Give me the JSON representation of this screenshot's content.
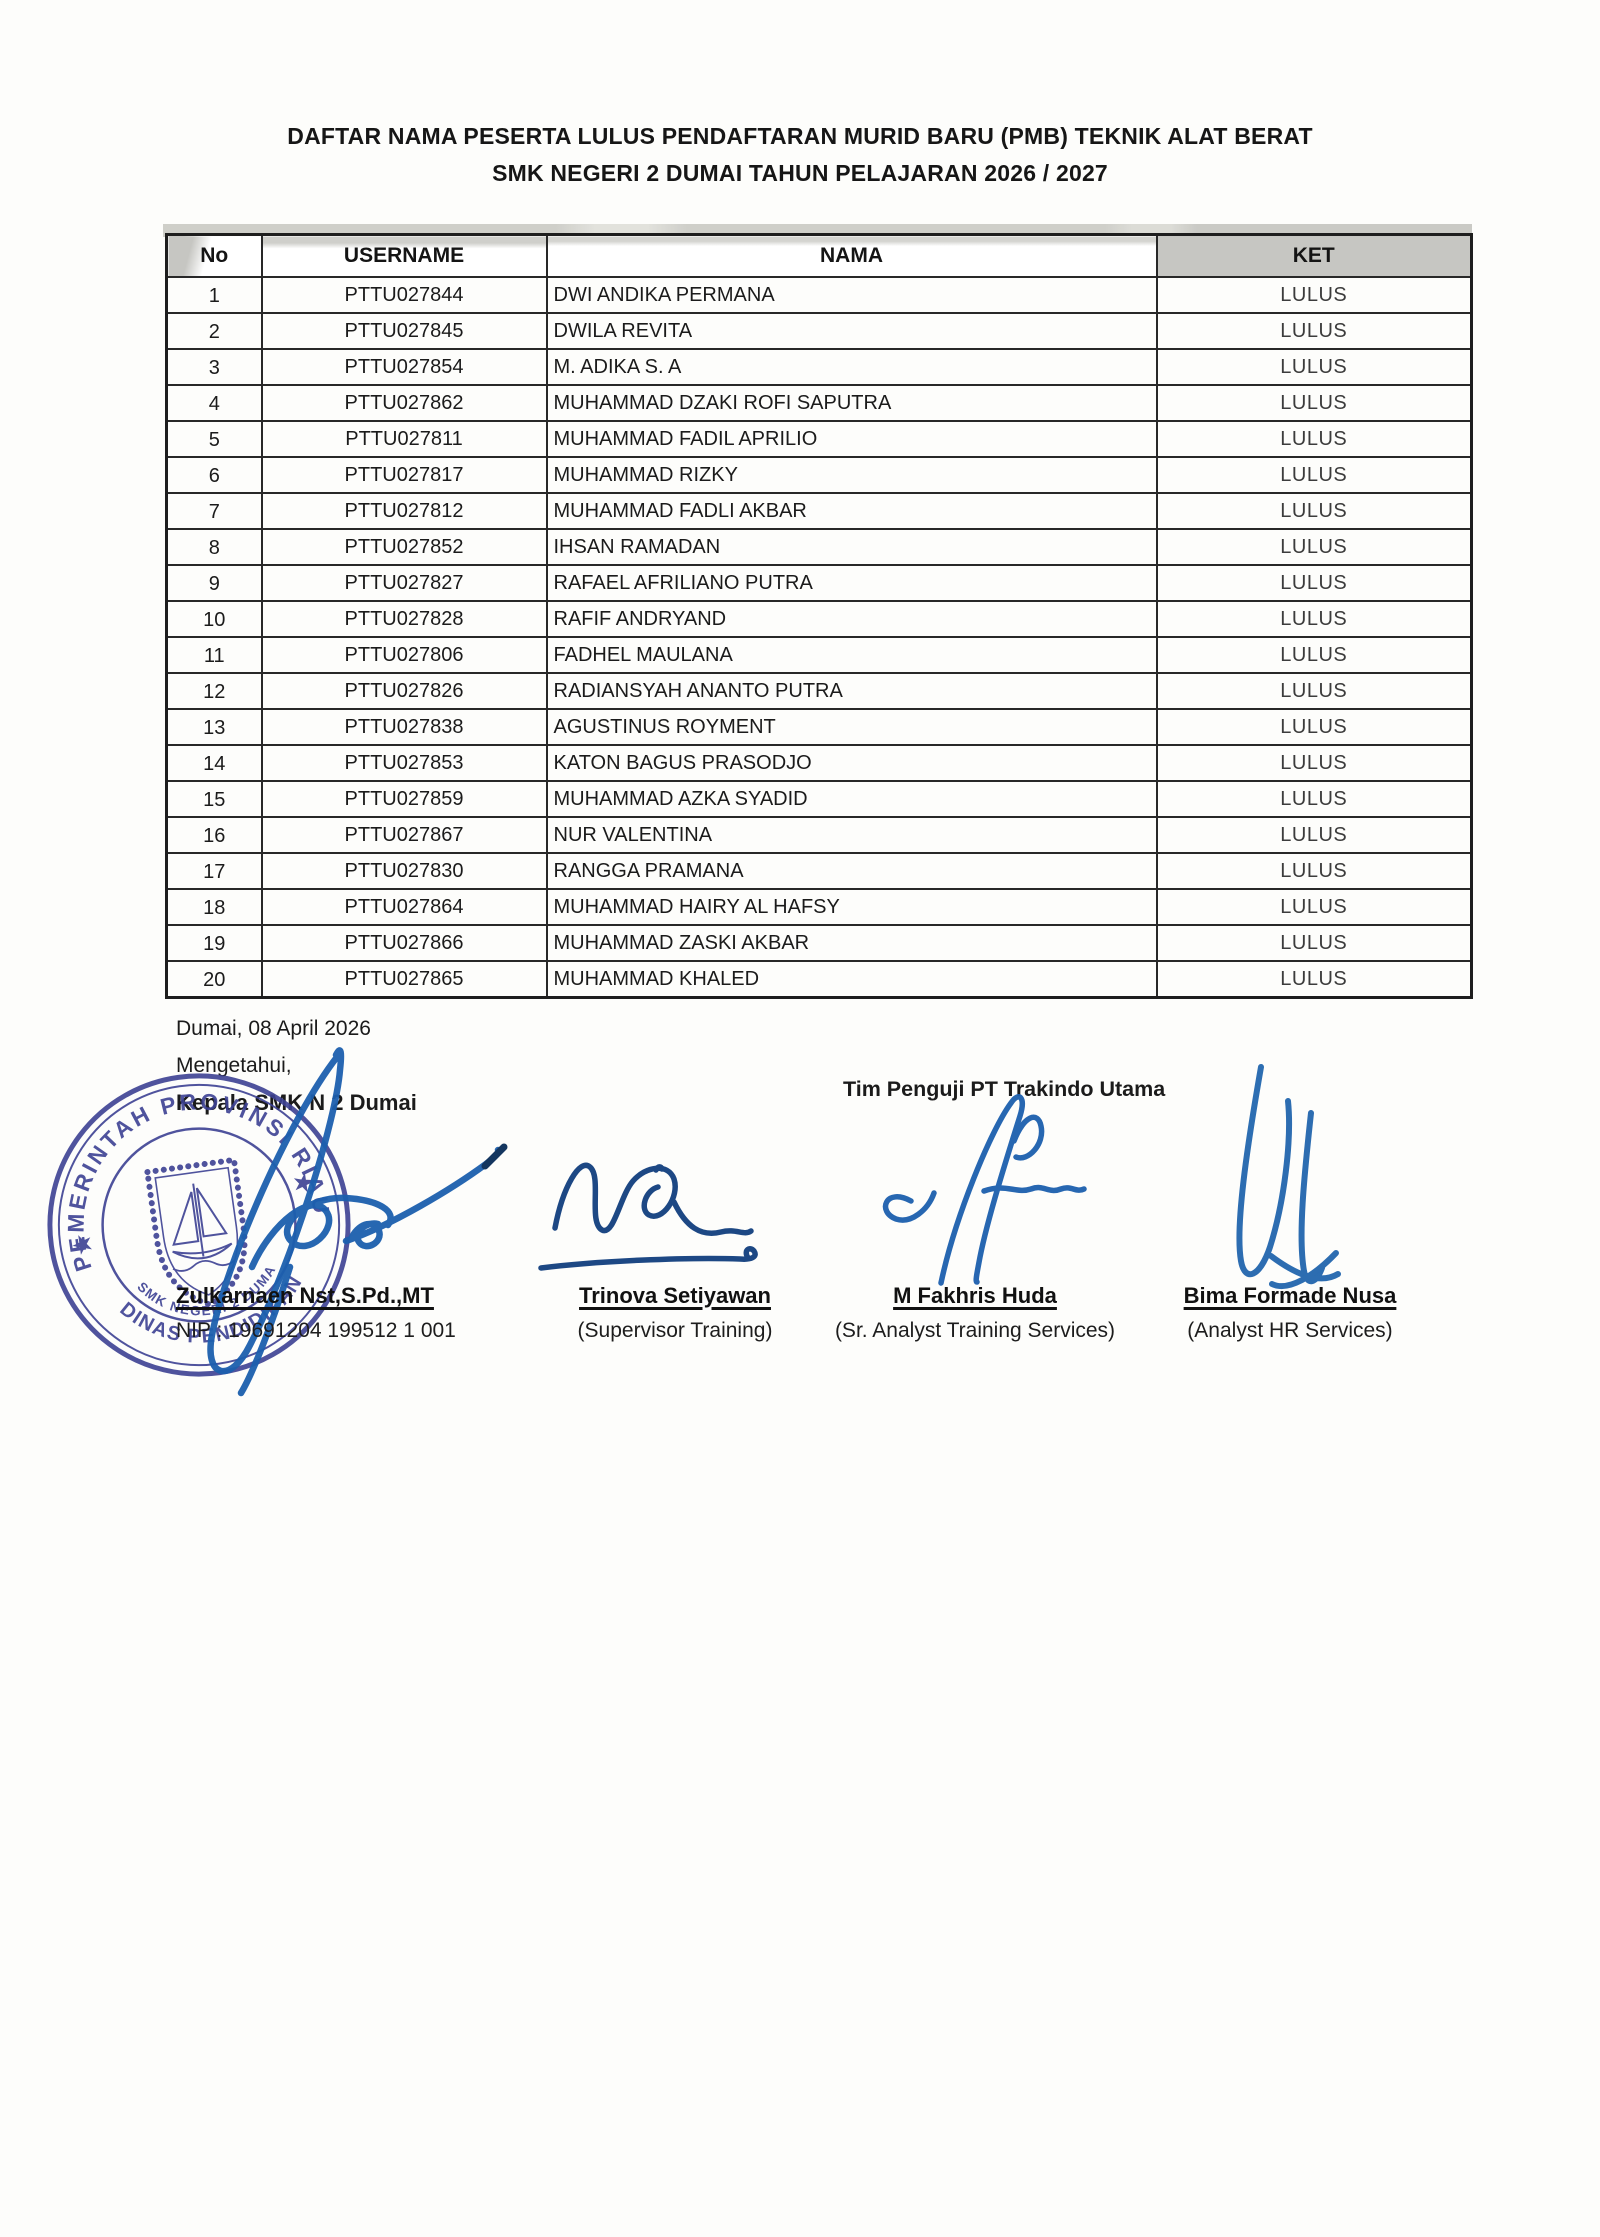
{
  "document": {
    "title_line1": "DAFTAR NAMA PESERTA LULUS PENDAFTARAN MURID BARU (PMB) TEKNIK ALAT BERAT",
    "title_line2": "SMK NEGERI 2 DUMAI TAHUN PELAJARAN 2026 / 2027"
  },
  "table": {
    "headers": [
      "No",
      "USERNAME",
      "NAMA",
      "KET"
    ],
    "rows": [
      [
        "1",
        "PTTU027844",
        "DWI ANDIKA PERMANA",
        "LULUS"
      ],
      [
        "2",
        "PTTU027845",
        "DWILA REVITA",
        "LULUS"
      ],
      [
        "3",
        "PTTU027854",
        "M. ADIKA S. A",
        "LULUS"
      ],
      [
        "4",
        "PTTU027862",
        "MUHAMMAD DZAKI ROFI SAPUTRA",
        "LULUS"
      ],
      [
        "5",
        "PTTU027811",
        "MUHAMMAD FADIL APRILIO",
        "LULUS"
      ],
      [
        "6",
        "PTTU027817",
        "MUHAMMAD RIZKY",
        "LULUS"
      ],
      [
        "7",
        "PTTU027812",
        "MUHAMMAD FADLI AKBAR",
        "LULUS"
      ],
      [
        "8",
        "PTTU027852",
        "IHSAN RAMADAN",
        "LULUS"
      ],
      [
        "9",
        "PTTU027827",
        "RAFAEL AFRILIANO PUTRA",
        "LULUS"
      ],
      [
        "10",
        "PTTU027828",
        "RAFIF ANDRYAND",
        "LULUS"
      ],
      [
        "11",
        "PTTU027806",
        "FADHEL MAULANA",
        "LULUS"
      ],
      [
        "12",
        "PTTU027826",
        "RADIANSYAH ANANTO PUTRA",
        "LULUS"
      ],
      [
        "13",
        "PTTU027838",
        "AGUSTINUS ROYMENT",
        "LULUS"
      ],
      [
        "14",
        "PTTU027853",
        "KATON BAGUS PRASODJO",
        "LULUS"
      ],
      [
        "15",
        "PTTU027859",
        "MUHAMMAD AZKA SYADID",
        "LULUS"
      ],
      [
        "16",
        "PTTU027867",
        "NUR VALENTINA",
        "LULUS"
      ],
      [
        "17",
        "PTTU027830",
        "RANGGA PRAMANA",
        "LULUS"
      ],
      [
        "18",
        "PTTU027864",
        "MUHAMMAD HAIRY AL HAFSY",
        "LULUS"
      ],
      [
        "19",
        "PTTU027866",
        "MUHAMMAD ZASKI AKBAR",
        "LULUS"
      ],
      [
        "20",
        "PTTU027865",
        "MUHAMMAD KHALED",
        "LULUS"
      ]
    ]
  },
  "signing": {
    "place_date": "Dumai, 08 April 2026",
    "acknowledge": "Mengetahui,",
    "principal_title": "Kepala SMK N 2 Dumai",
    "examiner_team_title": "Tim Penguji PT Trakindo Utama",
    "principal": {
      "name": "Zulkarnaen Nst,S.Pd.,MT",
      "nip": "NIP : 19691204 199512 1 001"
    },
    "examiners": [
      {
        "name": "Trinova Setiyawan",
        "role": "(Supervisor Training)"
      },
      {
        "name": "M Fakhris Huda",
        "role": "(Sr. Analyst Training Services)"
      },
      {
        "name": "Bima Formade Nusa",
        "role": "(Analyst HR Services)"
      }
    ],
    "stamp": {
      "outer_top": "PEMERINTAH PROVINSI RIAU",
      "outer_bottom": "DINAS PENDIDIKAN",
      "inner_bottom": "SMK NEGERI 2 DUMAI",
      "ink_color": "#3d4193"
    },
    "signature_ink_color": "#1c5fae",
    "signature_ink_dark": "#123f7e"
  }
}
